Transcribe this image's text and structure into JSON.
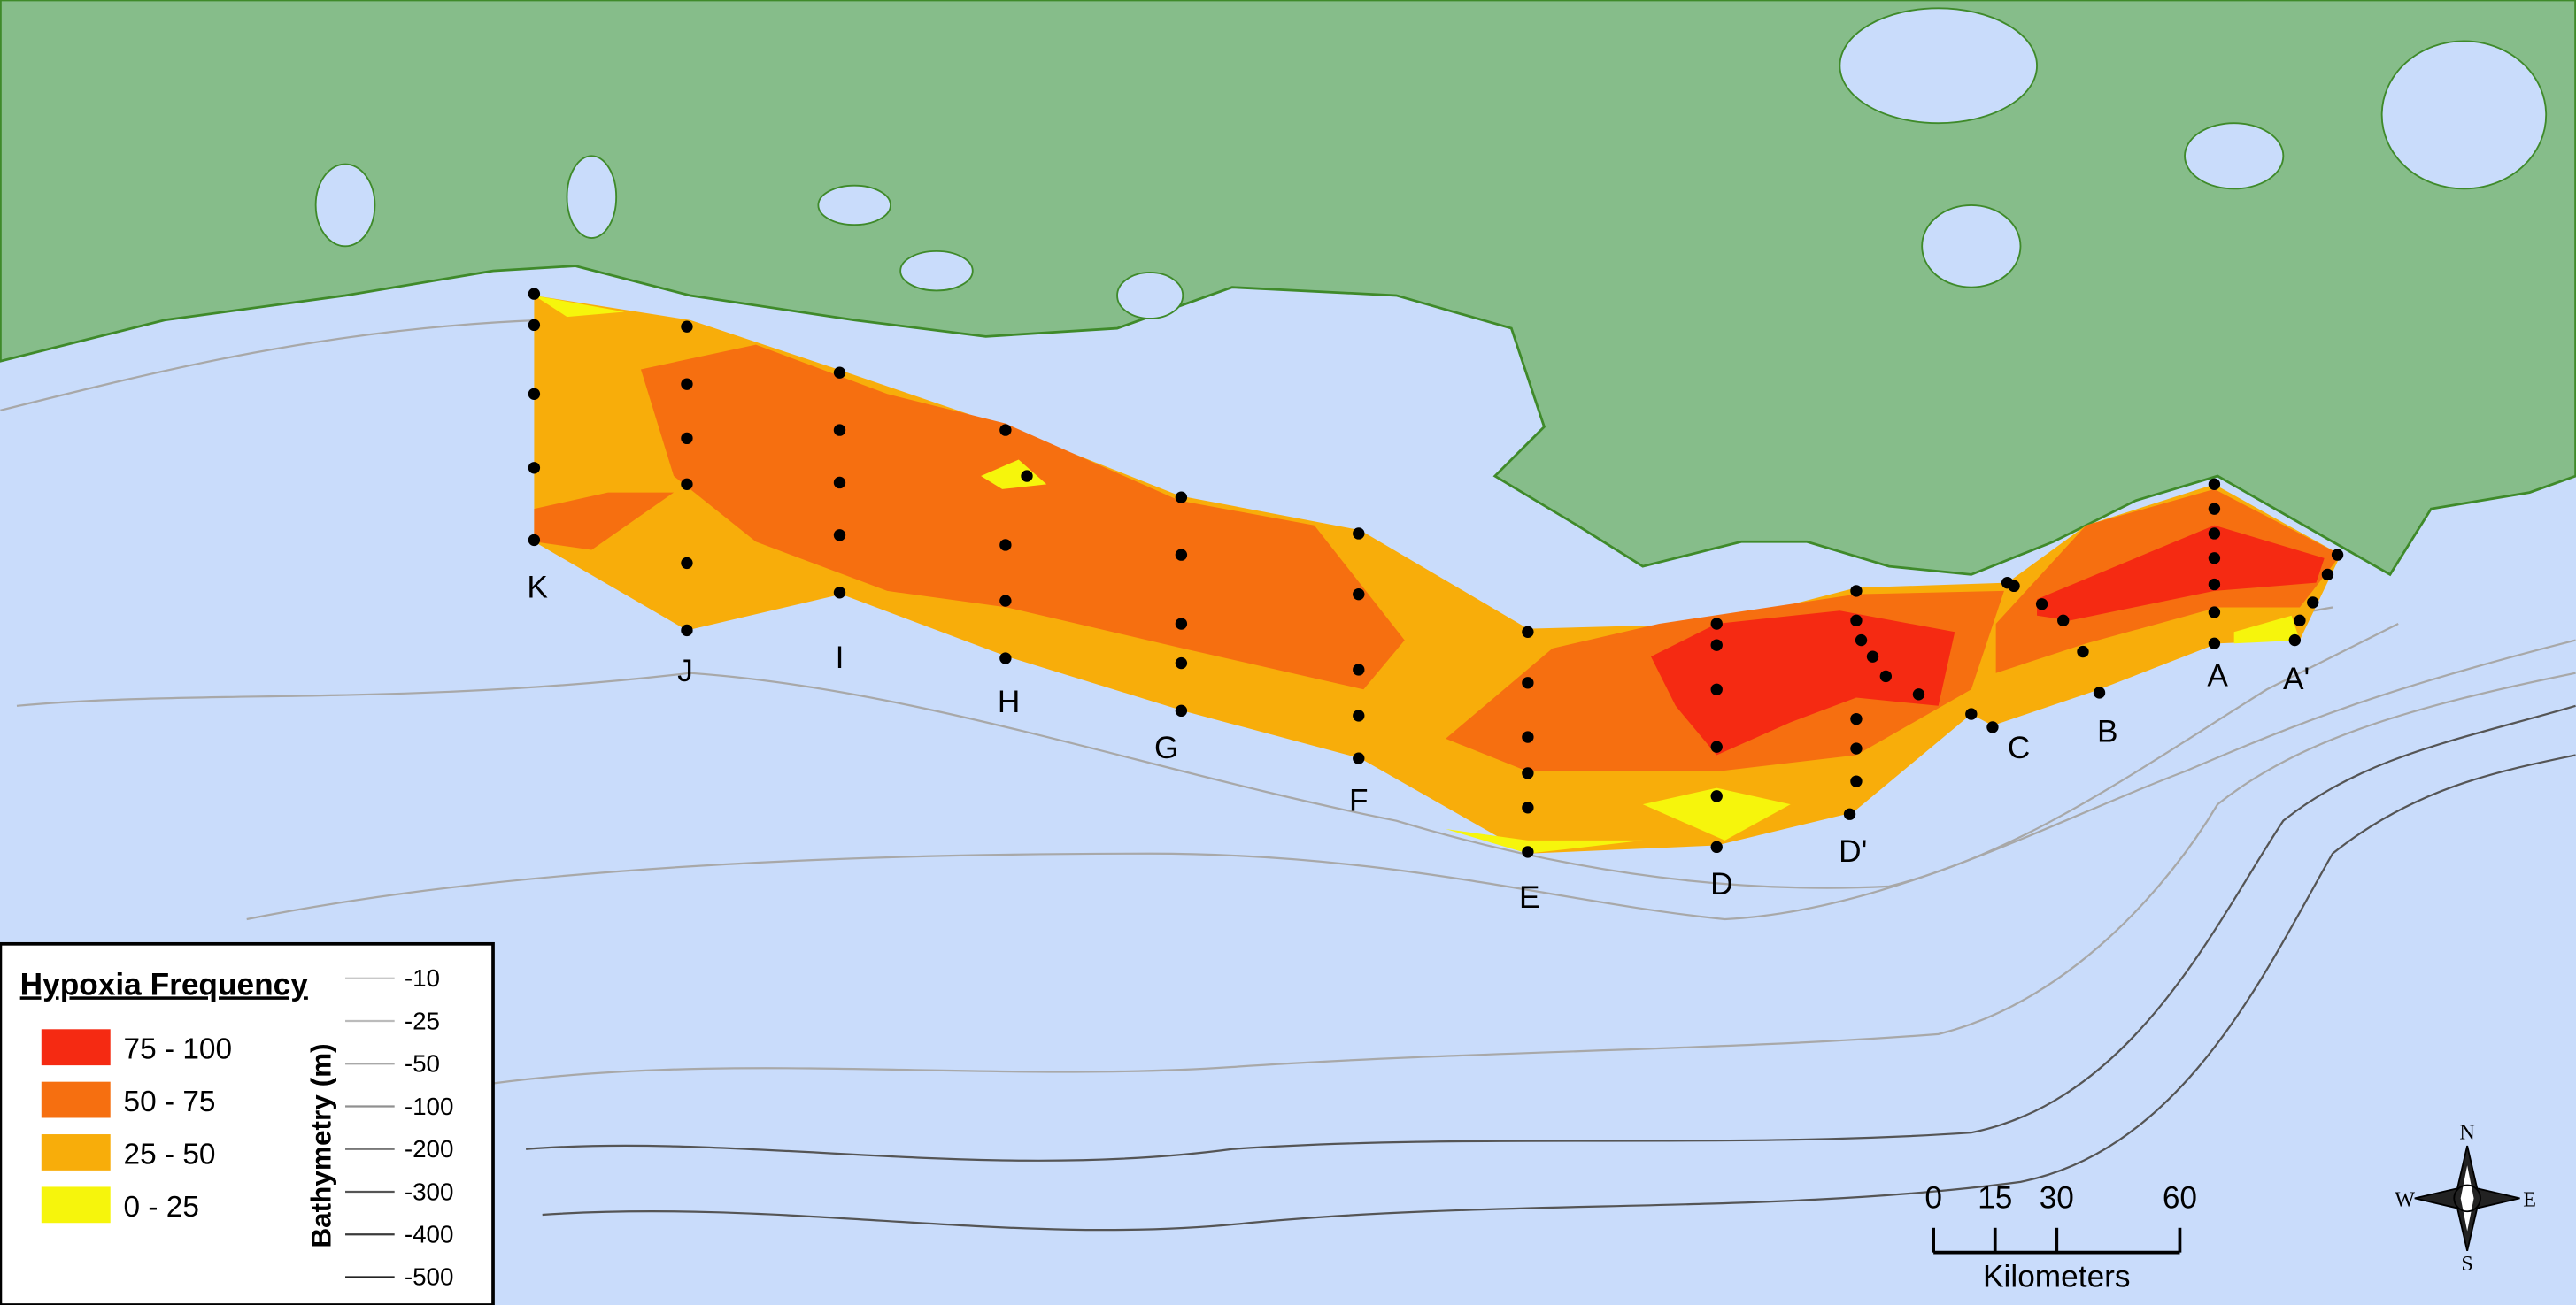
{
  "map": {
    "transects": [
      "K",
      "J",
      "I",
      "H",
      "G",
      "F",
      "E",
      "D",
      "D'",
      "C",
      "B",
      "A",
      "A'"
    ],
    "legend": {
      "title": "Hypoxia Frequency",
      "classes": [
        {
          "label": "75 - 100",
          "color": "#f52a12"
        },
        {
          "label": "50 - 75",
          "color": "#f66f10"
        },
        {
          "label": "25 - 50",
          "color": "#f8ad0a"
        },
        {
          "label": "0 - 25",
          "color": "#f6f50c"
        }
      ],
      "bathymetry_title": "Bathymetry (m)",
      "bathymetry": [
        -10,
        -25,
        -50,
        -100,
        -200,
        -300,
        -400,
        -500
      ]
    },
    "scale": {
      "ticks": [
        0,
        15,
        30,
        60
      ],
      "unit": "Kilometers"
    },
    "compass": {
      "n": "N",
      "e": "E",
      "s": "S",
      "w": "W"
    }
  }
}
